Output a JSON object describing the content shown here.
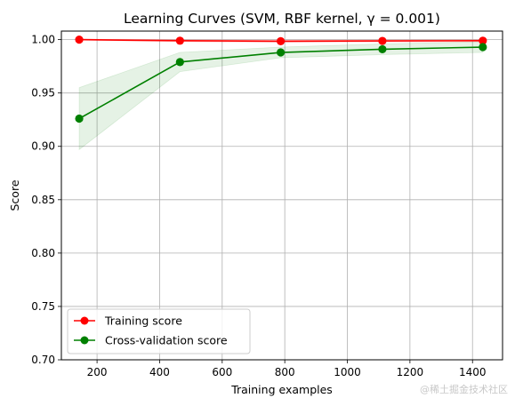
{
  "chart_data": {
    "type": "line",
    "title": "Learning Curves (SVM, RBF kernel, γ = 0.001)",
    "xlabel": "Training examples",
    "ylabel": "Score",
    "xlim": [
      86,
      1496
    ],
    "ylim": [
      0.7,
      1.008
    ],
    "xticks": [
      200,
      400,
      600,
      800,
      1000,
      1200,
      1400
    ],
    "yticks": [
      0.7,
      0.75,
      0.8,
      0.85,
      0.9,
      0.95,
      1.0
    ],
    "grid": true,
    "legend_position": "lower-left",
    "series": [
      {
        "name": "Training score",
        "color": "#ff0000",
        "band_color": "#ff0000",
        "marker": "circle",
        "x": [
          143,
          465,
          787,
          1112,
          1433
        ],
        "y": [
          1.0,
          0.999,
          0.9985,
          0.9988,
          0.999
        ],
        "band_low": [
          0.9995,
          0.998,
          0.9975,
          0.9978,
          0.998
        ],
        "band_high": [
          1.0005,
          1.0,
          0.9995,
          0.9998,
          1.0
        ]
      },
      {
        "name": "Cross-validation score",
        "color": "#008000",
        "band_color": "#008000",
        "marker": "circle",
        "x": [
          143,
          465,
          787,
          1112,
          1433
        ],
        "y": [
          0.926,
          0.979,
          0.988,
          0.991,
          0.993
        ],
        "band_low": [
          0.897,
          0.97,
          0.983,
          0.986,
          0.988
        ],
        "band_high": [
          0.955,
          0.988,
          0.993,
          0.996,
          0.998
        ]
      }
    ]
  },
  "watermark": "@稀土掘金技术社区"
}
